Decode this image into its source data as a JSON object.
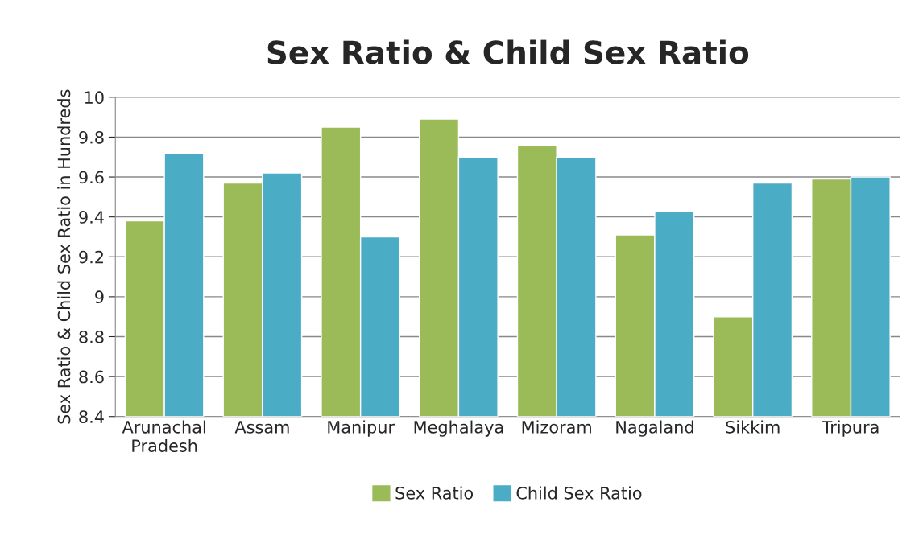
{
  "chart_data": {
    "type": "bar",
    "title": "Sex Ratio & Child Sex Ratio",
    "ylabel": "Sex Ratio & Child Sex Ratio in Hundreds",
    "categories": [
      "Arunachal\nPradesh",
      "Assam",
      "Manipur",
      "Meghalaya",
      "Mizoram",
      "Nagaland",
      "Sikkim",
      "Tripura"
    ],
    "series": [
      {
        "name": "Sex Ratio",
        "color": "#9bbb59",
        "values": [
          9.38,
          9.57,
          9.85,
          9.89,
          9.76,
          9.31,
          8.9,
          9.59
        ]
      },
      {
        "name": "Child Sex Ratio",
        "color": "#4bacc6",
        "values": [
          9.72,
          9.62,
          9.3,
          9.7,
          9.7,
          9.43,
          9.57,
          9.6
        ]
      }
    ],
    "ylim": [
      8.4,
      10
    ],
    "yticks": [
      8.4,
      8.6,
      8.8,
      9,
      9.2,
      9.4,
      9.6,
      9.8,
      10
    ],
    "grid": "y",
    "legend": "bottom"
  }
}
